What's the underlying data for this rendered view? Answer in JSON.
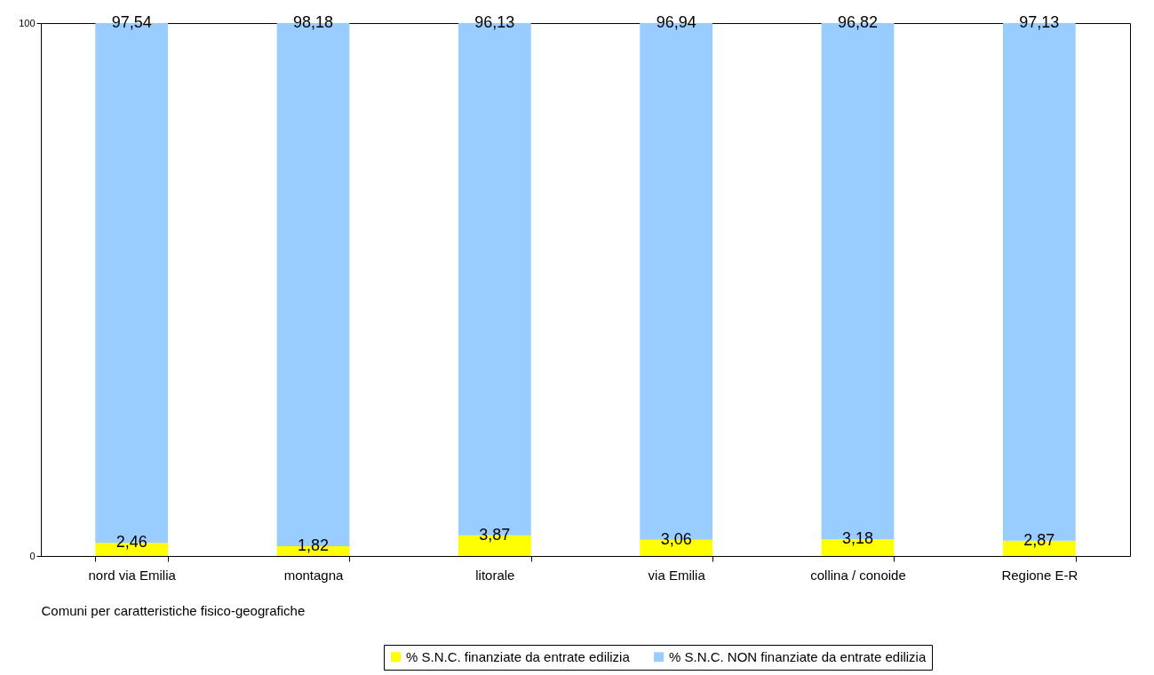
{
  "chart_data": {
    "type": "bar",
    "stacked": true,
    "xlabel": "Comuni per caratteristiche fisico-geografiche",
    "categories": [
      "nord via Emilia",
      "montagna",
      "litorale",
      "via Emilia",
      "collina / conoide",
      "Regione E-R"
    ],
    "series": [
      {
        "name": "% S.N.C. finanziate da entrate edilizia",
        "color": "#ffff00",
        "values": [
          2.46,
          1.82,
          3.87,
          3.06,
          3.18,
          2.87
        ],
        "value_labels": [
          "2,46",
          "1,82",
          "3,87",
          "3,06",
          "3,18",
          "2,87"
        ]
      },
      {
        "name": "% S.N.C. NON finanziate da entrate edilizia",
        "color": "#99ccff",
        "values": [
          97.54,
          98.18,
          96.13,
          96.94,
          96.82,
          97.13
        ],
        "value_labels": [
          "97,54",
          "98,18",
          "96,13",
          "96,94",
          "96,82",
          "97,13"
        ]
      }
    ],
    "ylim": [
      0,
      100
    ],
    "yticks": [
      0,
      100
    ],
    "grid": false,
    "legend": "bottom right"
  }
}
